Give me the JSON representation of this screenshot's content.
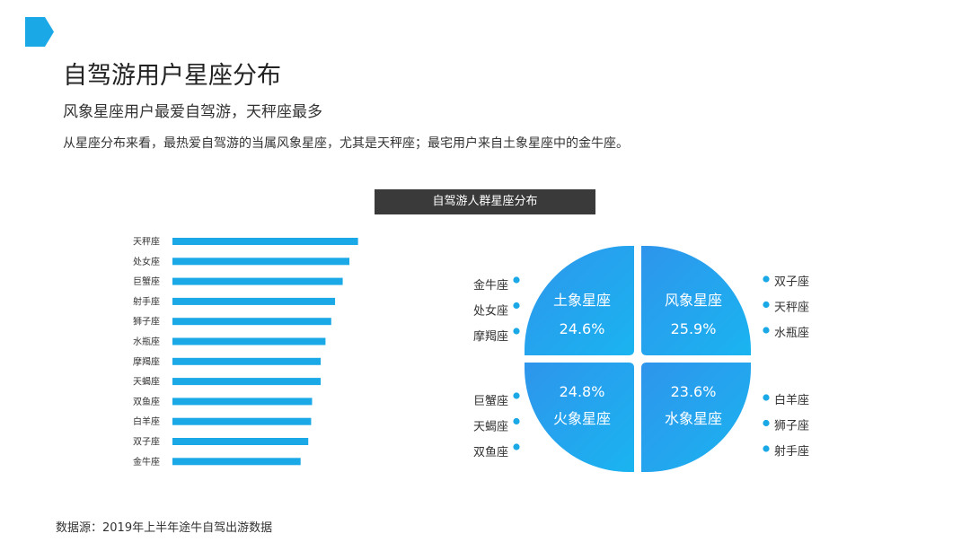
{
  "title": "自驾游用户星座分布",
  "subtitle": "风象星座用户最爱自驾游，天秤座最多",
  "description": "从星座分布来看，最热爱自驾游的当属风象星座，尤其是天秤座；最宅用户来自土象星座中的金牛座。",
  "source": "数据源：2019年上半年途牛自驾出游数据",
  "accent_color": "#1aa8e6",
  "chart_data": [
    {
      "type": "bar",
      "orientation": "horizontal",
      "title": "",
      "categories": [
        "天秤座",
        "处女座",
        "巨蟹座",
        "射手座",
        "狮子座",
        "水瓶座",
        "摩羯座",
        "天蝎座",
        "双鱼座",
        "白羊座",
        "双子座",
        "金牛座"
      ],
      "values": [
        9.7,
        9.25,
        8.9,
        8.5,
        8.3,
        8.0,
        7.75,
        7.75,
        7.3,
        7.25,
        7.1,
        6.7
      ],
      "xlim": [
        0,
        10
      ],
      "grid": false,
      "color": "#1aa8e6"
    },
    {
      "type": "pie",
      "title": "自驾游人群星座分布",
      "labels": [
        "土象星座",
        "风象星座",
        "火象星座",
        "水象星座"
      ],
      "values": [
        "24.6%",
        "25.9%",
        "24.8%",
        "23.6%"
      ],
      "members": {
        "土象星座": [
          "金牛座",
          "处女座",
          "摩羯座"
        ],
        "风象星座": [
          "双子座",
          "天秤座",
          "水瓶座"
        ],
        "火象星座": [
          "巨蟹座",
          "天蝎座",
          "双鱼座"
        ],
        "水象星座": [
          "白羊座",
          "狮子座",
          "射手座"
        ]
      }
    }
  ]
}
